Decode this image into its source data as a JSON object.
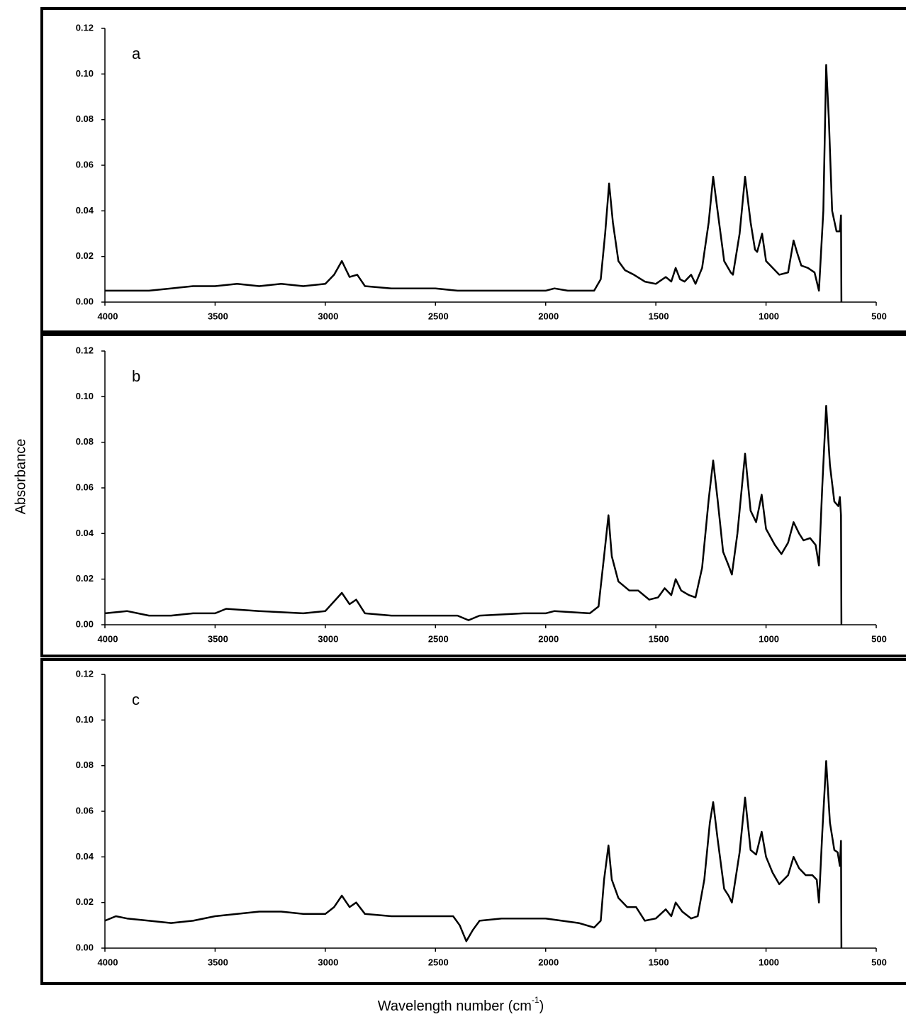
{
  "ylabel": "Absorbance",
  "xlabel": {
    "text": "Wavelength number (cm",
    "sup": "-1",
    "end": ")"
  },
  "chart_data": [
    {
      "type": "line",
      "annotation": "a",
      "color": "#000000",
      "xlim": [
        4000,
        500
      ],
      "ylim": [
        0,
        0.12
      ],
      "xticks": [
        4000,
        3500,
        3000,
        2500,
        2000,
        1500,
        1000,
        500
      ],
      "yticks": [
        {
          "value": 0,
          "label": "0.00"
        },
        {
          "value": 0.02,
          "label": "0.02"
        },
        {
          "value": 0.04,
          "label": "0.04"
        },
        {
          "value": 0.06,
          "label": "0.06"
        },
        {
          "value": 0.08,
          "label": "0.08"
        },
        {
          "value": 0.1,
          "label": "0.10"
        },
        {
          "value": 0.12,
          "label": "0.12"
        }
      ],
      "x": [
        4000,
        3900,
        3800,
        3700,
        3600,
        3500,
        3400,
        3300,
        3200,
        3100,
        3000,
        2960,
        2925,
        2890,
        2855,
        2820,
        2700,
        2500,
        2400,
        2300,
        2200,
        2000,
        1960,
        1900,
        1780,
        1750,
        1730,
        1712,
        1695,
        1670,
        1640,
        1600,
        1550,
        1500,
        1455,
        1430,
        1410,
        1390,
        1370,
        1340,
        1320,
        1290,
        1260,
        1240,
        1220,
        1190,
        1160,
        1150,
        1120,
        1095,
        1070,
        1050,
        1040,
        1018,
        1000,
        980,
        940,
        900,
        875,
        860,
        840,
        810,
        780,
        760,
        740,
        727,
        715,
        700,
        680,
        665,
        660,
        658
      ],
      "values": [
        0.005,
        0.005,
        0.005,
        0.006,
        0.007,
        0.007,
        0.008,
        0.007,
        0.008,
        0.007,
        0.008,
        0.012,
        0.018,
        0.011,
        0.012,
        0.007,
        0.006,
        0.006,
        0.005,
        0.005,
        0.005,
        0.005,
        0.006,
        0.005,
        0.005,
        0.01,
        0.03,
        0.052,
        0.035,
        0.018,
        0.014,
        0.012,
        0.009,
        0.008,
        0.011,
        0.009,
        0.015,
        0.01,
        0.009,
        0.012,
        0.008,
        0.015,
        0.035,
        0.055,
        0.04,
        0.018,
        0.013,
        0.012,
        0.03,
        0.055,
        0.035,
        0.023,
        0.022,
        0.03,
        0.018,
        0.016,
        0.012,
        0.013,
        0.027,
        0.022,
        0.016,
        0.015,
        0.013,
        0.005,
        0.04,
        0.104,
        0.08,
        0.04,
        0.031,
        0.031,
        0.038,
        0
      ]
    },
    {
      "type": "line",
      "annotation": "b",
      "color": "#000000",
      "xlim": [
        4000,
        500
      ],
      "ylim": [
        0,
        0.12
      ],
      "xticks": [
        4000,
        3500,
        3000,
        2500,
        2000,
        1500,
        1000,
        500
      ],
      "yticks": [
        {
          "value": 0,
          "label": "0.00"
        },
        {
          "value": 0.02,
          "label": "0.02"
        },
        {
          "value": 0.04,
          "label": "0.04"
        },
        {
          "value": 0.06,
          "label": "0.06"
        },
        {
          "value": 0.08,
          "label": "0.08"
        },
        {
          "value": 0.1,
          "label": "0.10"
        },
        {
          "value": 0.12,
          "label": "0.12"
        }
      ],
      "x": [
        4000,
        3900,
        3800,
        3700,
        3600,
        3500,
        3450,
        3300,
        3100,
        3000,
        2925,
        2890,
        2860,
        2820,
        2700,
        2500,
        2400,
        2350,
        2300,
        2100,
        2000,
        1960,
        1800,
        1760,
        1735,
        1715,
        1700,
        1670,
        1620,
        1580,
        1530,
        1490,
        1460,
        1430,
        1410,
        1385,
        1350,
        1320,
        1290,
        1260,
        1240,
        1220,
        1195,
        1170,
        1155,
        1130,
        1095,
        1070,
        1045,
        1020,
        1000,
        960,
        930,
        900,
        875,
        850,
        830,
        800,
        775,
        760,
        745,
        727,
        710,
        690,
        672,
        665,
        660,
        658
      ],
      "values": [
        0.005,
        0.006,
        0.004,
        0.004,
        0.005,
        0.005,
        0.007,
        0.006,
        0.005,
        0.006,
        0.014,
        0.009,
        0.011,
        0.005,
        0.004,
        0.004,
        0.004,
        0.002,
        0.004,
        0.005,
        0.005,
        0.006,
        0.005,
        0.008,
        0.03,
        0.048,
        0.03,
        0.019,
        0.015,
        0.015,
        0.011,
        0.012,
        0.016,
        0.013,
        0.02,
        0.015,
        0.013,
        0.012,
        0.025,
        0.055,
        0.072,
        0.055,
        0.032,
        0.026,
        0.022,
        0.04,
        0.075,
        0.05,
        0.045,
        0.057,
        0.042,
        0.035,
        0.031,
        0.036,
        0.045,
        0.04,
        0.037,
        0.038,
        0.035,
        0.026,
        0.06,
        0.096,
        0.07,
        0.054,
        0.052,
        0.056,
        0.048,
        0
      ]
    },
    {
      "type": "line",
      "annotation": "c",
      "color": "#000000",
      "xlim": [
        4000,
        500
      ],
      "ylim": [
        0,
        0.12
      ],
      "xticks": [
        4000,
        3500,
        3000,
        2500,
        2000,
        1500,
        1000,
        500
      ],
      "yticks": [
        {
          "value": 0,
          "label": "0.00"
        },
        {
          "value": 0.02,
          "label": "0.02"
        },
        {
          "value": 0.04,
          "label": "0.04"
        },
        {
          "value": 0.06,
          "label": "0.06"
        },
        {
          "value": 0.08,
          "label": "0.08"
        },
        {
          "value": 0.1,
          "label": "0.10"
        },
        {
          "value": 0.12,
          "label": "0.12"
        }
      ],
      "x": [
        4000,
        3950,
        3900,
        3800,
        3700,
        3600,
        3500,
        3400,
        3300,
        3200,
        3100,
        3000,
        2960,
        2925,
        2890,
        2860,
        2820,
        2700,
        2550,
        2420,
        2390,
        2360,
        2330,
        2300,
        2200,
        2000,
        1850,
        1780,
        1750,
        1735,
        1715,
        1700,
        1670,
        1630,
        1590,
        1550,
        1500,
        1455,
        1430,
        1410,
        1380,
        1340,
        1310,
        1280,
        1255,
        1240,
        1220,
        1190,
        1170,
        1155,
        1120,
        1095,
        1070,
        1045,
        1020,
        1000,
        970,
        940,
        900,
        875,
        850,
        820,
        790,
        770,
        760,
        745,
        727,
        710,
        690,
        675,
        665,
        660,
        658
      ],
      "values": [
        0.012,
        0.014,
        0.013,
        0.012,
        0.011,
        0.012,
        0.014,
        0.015,
        0.016,
        0.016,
        0.015,
        0.015,
        0.018,
        0.023,
        0.018,
        0.02,
        0.015,
        0.014,
        0.014,
        0.014,
        0.01,
        0.003,
        0.008,
        0.012,
        0.013,
        0.013,
        0.011,
        0.009,
        0.012,
        0.03,
        0.045,
        0.03,
        0.022,
        0.018,
        0.018,
        0.012,
        0.013,
        0.017,
        0.014,
        0.02,
        0.016,
        0.013,
        0.014,
        0.03,
        0.055,
        0.064,
        0.048,
        0.026,
        0.023,
        0.02,
        0.042,
        0.066,
        0.043,
        0.041,
        0.051,
        0.04,
        0.033,
        0.028,
        0.032,
        0.04,
        0.035,
        0.032,
        0.032,
        0.03,
        0.02,
        0.05,
        0.082,
        0.055,
        0.043,
        0.042,
        0.036,
        0.047,
        0
      ]
    }
  ]
}
